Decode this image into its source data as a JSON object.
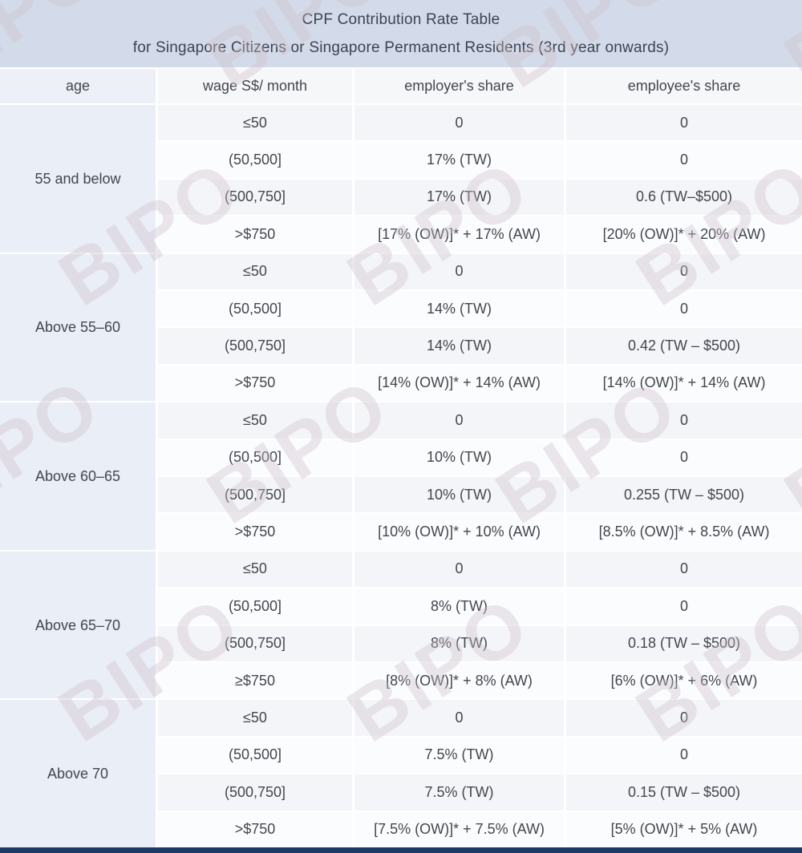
{
  "title": {
    "line1": "CPF Contribution Rate Table",
    "line2": "for Singapore Citizens or Singapore Permanent Residents (3rd year onwards)"
  },
  "columns": [
    "age",
    "wage S$/ month",
    "employer's share",
    "employee's share"
  ],
  "watermark": {
    "text": "BIPO"
  },
  "colors": {
    "title_bar_bg": "#d3dae9",
    "age_column_bg": "#eaeef6",
    "header_cell_bg": "#f6f7f9",
    "row_stripe_bg": "#f4f5f8",
    "bottom_bar": "#1d3966",
    "text": "#42474e",
    "watermark": "#cdc1cb"
  },
  "groups": [
    {
      "age": "55 and below",
      "rows": [
        [
          "≤50",
          "0",
          "0"
        ],
        [
          "(50,500]",
          "17% (TW)",
          "0"
        ],
        [
          "(500,750]",
          "17% (TW)",
          "0.6 (TW–$500)"
        ],
        [
          ">$750",
          "[17% (OW)]* + 17% (AW)",
          "[20% (OW)]* + 20% (AW)"
        ]
      ]
    },
    {
      "age": "Above 55–60",
      "rows": [
        [
          "≤50",
          "0",
          "0"
        ],
        [
          "(50,500]",
          "14% (TW)",
          "0"
        ],
        [
          "(500,750]",
          "14% (TW)",
          "0.42 (TW – $500)"
        ],
        [
          ">$750",
          "[14% (OW)]* + 14% (AW)",
          "[14% (OW)]* + 14% (AW)"
        ]
      ]
    },
    {
      "age": "Above 60–65",
      "rows": [
        [
          "≤50",
          "0",
          "0"
        ],
        [
          "(50,500]",
          "10% (TW)",
          "0"
        ],
        [
          "(500,750]",
          "10% (TW)",
          "0.255 (TW – $500)"
        ],
        [
          ">$750",
          "[10% (OW)]* + 10% (AW)",
          "[8.5% (OW)]* + 8.5% (AW)"
        ]
      ]
    },
    {
      "age": "Above 65–70",
      "rows": [
        [
          "≤50",
          "0",
          "0"
        ],
        [
          "(50,500]",
          "8% (TW)",
          "0"
        ],
        [
          "(500,750]",
          "8% (TW)",
          "0.18 (TW – $500)"
        ],
        [
          "≥$750",
          "[8% (OW)]* + 8% (AW)",
          "[6% (OW)]* + 6% (AW)"
        ]
      ]
    },
    {
      "age": "Above 70",
      "rows": [
        [
          "≤50",
          "0",
          "0"
        ],
        [
          "(50,500]",
          "7.5% (TW)",
          "0"
        ],
        [
          "(500,750]",
          "7.5% (TW)",
          "0.15 (TW – $500)"
        ],
        [
          ">$750",
          "[7.5% (OW)]* + 7.5% (AW)",
          "[5% (OW)]* + 5% (AW)"
        ]
      ]
    }
  ]
}
